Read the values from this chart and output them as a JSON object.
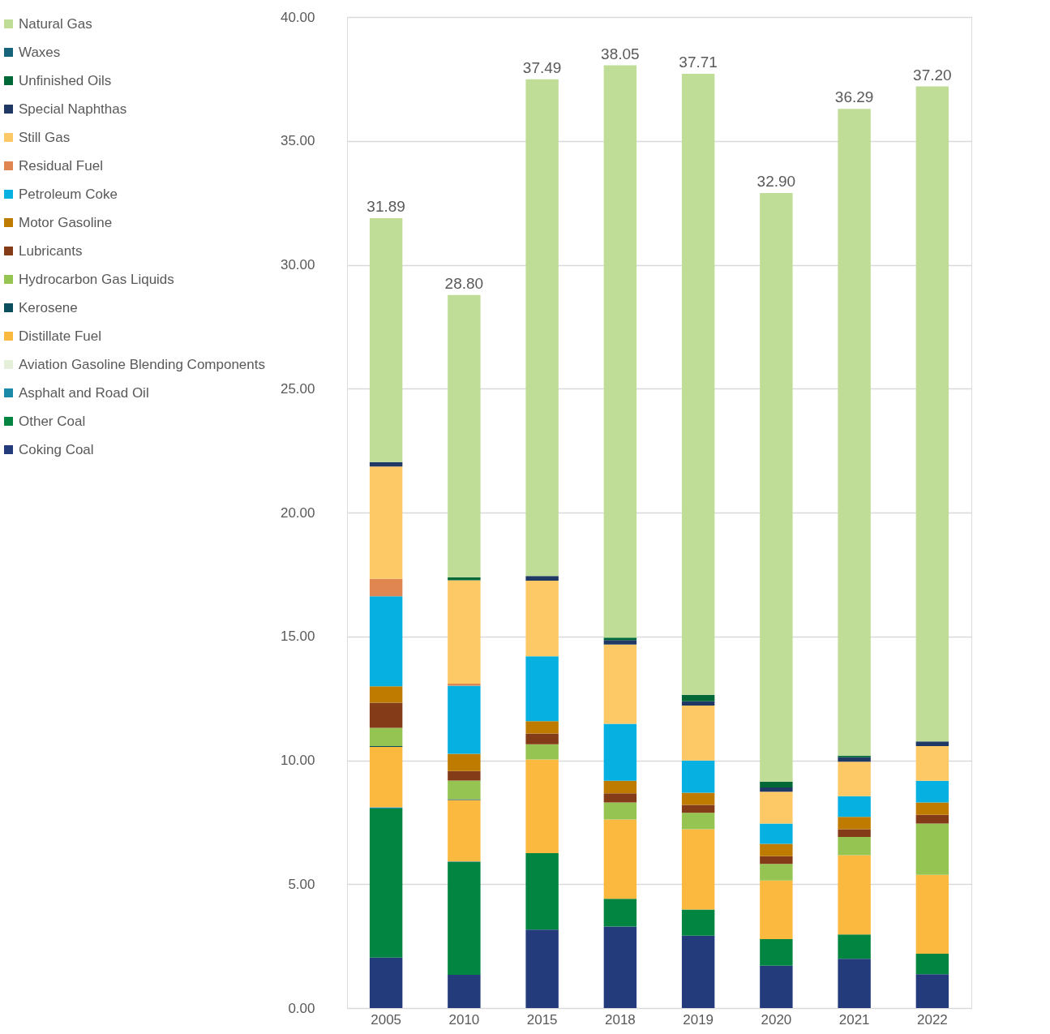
{
  "chart_data": {
    "type": "bar",
    "stacked": true,
    "categories": [
      "2005",
      "2010",
      "2015",
      "2018",
      "2019",
      "2020",
      "2021",
      "2022"
    ],
    "series": [
      {
        "name": "Coking Coal",
        "color": "#233a7b",
        "values": [
          2.04,
          1.34,
          3.17,
          3.29,
          2.92,
          1.71,
          1.99,
          1.37
        ]
      },
      {
        "name": "Other Coal",
        "color": "#038542",
        "values": [
          6.01,
          4.55,
          3.08,
          1.12,
          1.06,
          1.07,
          0.98,
          0.82
        ]
      },
      {
        "name": "Asphalt and Road Oil",
        "color": "#1a8aa8",
        "values": [
          0.05,
          0.03,
          0,
          0,
          0,
          0,
          0,
          0
        ]
      },
      {
        "name": "Aviation Gasoline Blending Components",
        "color": "#e5f0da",
        "values": [
          0,
          0,
          0,
          0,
          0,
          0,
          0,
          0
        ]
      },
      {
        "name": "Distillate Fuel",
        "color": "#fcb940",
        "values": [
          2.44,
          2.48,
          3.78,
          3.2,
          3.24,
          2.37,
          3.2,
          3.19
        ]
      },
      {
        "name": "Kerosene",
        "color": "#0b4e5e",
        "values": [
          0.03,
          0.03,
          0,
          0,
          0,
          0,
          0,
          0
        ]
      },
      {
        "name": "Hydrocarbon Gas Liquids",
        "color": "#96c452",
        "values": [
          0.74,
          0.75,
          0.62,
          0.69,
          0.66,
          0.67,
          0.74,
          2.07
        ]
      },
      {
        "name": "Lubricants",
        "color": "#843c18",
        "values": [
          1.01,
          0.39,
          0.43,
          0.37,
          0.32,
          0.31,
          0.31,
          0.35
        ]
      },
      {
        "name": "Motor Gasoline",
        "color": "#bf7b00",
        "values": [
          0.67,
          0.69,
          0.5,
          0.5,
          0.49,
          0.5,
          0.5,
          0.5
        ]
      },
      {
        "name": "Petroleum Coke",
        "color": "#06b0e0",
        "values": [
          3.63,
          2.75,
          2.62,
          2.3,
          1.3,
          0.82,
          0.83,
          0.87
        ]
      },
      {
        "name": "Residual Fuel",
        "color": "#e08650",
        "values": [
          0.7,
          0.08,
          0,
          0,
          0,
          0,
          0,
          0
        ]
      },
      {
        "name": "Still Gas",
        "color": "#fdc966",
        "values": [
          4.54,
          4.18,
          3.05,
          3.2,
          2.22,
          1.28,
          1.39,
          1.4
        ]
      },
      {
        "name": "Special Naphthas",
        "color": "#203864",
        "values": [
          0.18,
          0,
          0.19,
          0.18,
          0.17,
          0.17,
          0.18,
          0.19
        ]
      },
      {
        "name": "Unfinished Oils",
        "color": "#006837",
        "values": [
          0,
          0.12,
          0,
          0.1,
          0.26,
          0.24,
          0.07,
          0
        ]
      },
      {
        "name": "Waxes",
        "color": "#17647a",
        "values": [
          0,
          0,
          0,
          0,
          0,
          0,
          0,
          0
        ]
      },
      {
        "name": "Natural Gas",
        "color": "#c0dd97",
        "values": [
          9.84,
          11.39,
          20.05,
          23.1,
          25.07,
          23.76,
          26.1,
          26.44
        ]
      }
    ],
    "totals": [
      "31.89",
      "28.80",
      "37.49",
      "38.05",
      "37.71",
      "32.90",
      "36.29",
      "37.20"
    ],
    "ylim": [
      0,
      40
    ],
    "yticks": [
      {
        "value": 0,
        "label": "0.00"
      },
      {
        "value": 5,
        "label": "5.00"
      },
      {
        "value": 10,
        "label": "10.00"
      },
      {
        "value": 15,
        "label": "15.00"
      },
      {
        "value": 20,
        "label": "20.00"
      },
      {
        "value": 25,
        "label": "25.00"
      },
      {
        "value": 30,
        "label": "30.00"
      },
      {
        "value": 35,
        "label": "35.00"
      },
      {
        "value": 40,
        "label": "40.00"
      }
    ],
    "grid": "y",
    "legend": "left"
  }
}
